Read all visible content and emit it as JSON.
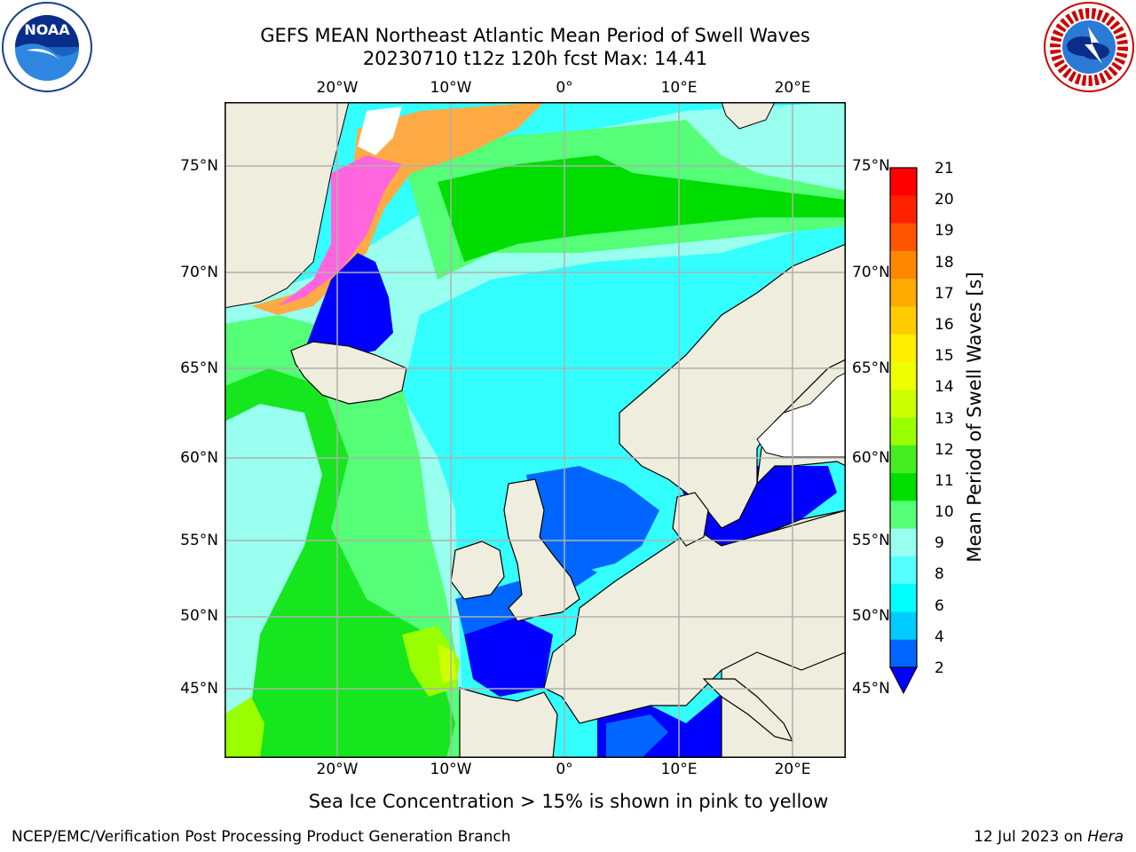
{
  "header": {
    "title_line1": "GEFS MEAN Northeast Atlantic Mean Period of Swell Waves",
    "title_line2": "20230710 t12z 120h fcst   Max: 14.41"
  },
  "logos": {
    "noaa": {
      "text": "NOAA",
      "ring_text": "NATIONAL OCEANIC AND ATMOSPHERIC ADMINISTRATION · U.S. DEPARTMENT OF COMMERCE"
    },
    "nws": {
      "ring_text": "NATIONAL WEATHER SERVICE"
    }
  },
  "map": {
    "lon_labels": [
      "20°W",
      "10°W",
      "0°",
      "10°E",
      "20°E"
    ],
    "lat_labels": [
      "75°N",
      "70°N",
      "65°N",
      "60°N",
      "55°N",
      "50°N",
      "45°N"
    ],
    "colors": {
      "land": "#efeddd",
      "ocean_base": "#33ffff",
      "grid": "#b0b0b0"
    }
  },
  "colorbar": {
    "title": "Mean Period of Swell Waves [s]",
    "ticks": [
      "21",
      "20",
      "19",
      "18",
      "17",
      "16",
      "15",
      "14",
      "13",
      "12",
      "11",
      "10",
      "9",
      "8",
      "6",
      "4",
      "2"
    ],
    "colors_top_to_bottom": [
      "#ff0000",
      "#ff2200",
      "#ff5500",
      "#ff8800",
      "#ffaa00",
      "#ffcc00",
      "#ffee00",
      "#eeff00",
      "#ccff00",
      "#99ff00",
      "#44ee22",
      "#00dd00",
      "#55ff77",
      "#99ffee",
      "#55ffff",
      "#00ffff",
      "#00ccff",
      "#0066ff"
    ],
    "under_color": "#0000ff"
  },
  "notes": {
    "ice": "Sea Ice Concentration > 15% is shown in pink to yellow"
  },
  "footer": {
    "left": "NCEP/EMC/Verification Post Processing Product Generation Branch",
    "right_prefix": "12 Jul 2023 on ",
    "right_host": "Hera"
  }
}
